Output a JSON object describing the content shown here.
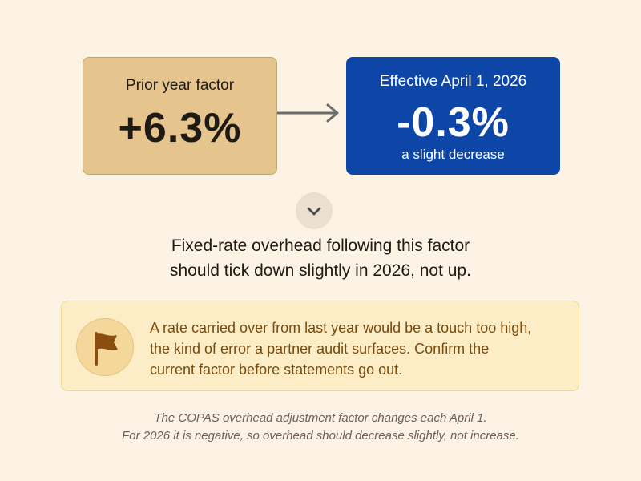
{
  "prior_card": {
    "label": "Prior year factor",
    "value": "+6.3%"
  },
  "effective_card": {
    "label": "Effective April 1, 2026",
    "value": "-0.3%",
    "note": "a slight decrease"
  },
  "icons": {
    "transition": "arrow-right-icon",
    "expand": "chevron-down-icon",
    "callout": "flag-icon"
  },
  "headline": {
    "line1": "Fixed-rate overhead following this factor",
    "line2": "should tick down slightly in 2026, not up."
  },
  "callout": {
    "line1": "A rate carried over from last year would be a touch too high,",
    "line2": "the kind of error a partner audit surfaces. Confirm the",
    "line3": "current factor before statements go out."
  },
  "footnote": {
    "line1": "The COPAS overhead adjustment factor changes each April 1.",
    "line2": "For 2026 it is negative, so overhead should decrease slightly, not increase."
  },
  "colors": {
    "background": "#fdf3e4",
    "prior_card": "#e6c48e",
    "effective_card": "#0e46a8",
    "callout_bg": "#fdedc7",
    "callout_text": "#7a4a0c"
  }
}
